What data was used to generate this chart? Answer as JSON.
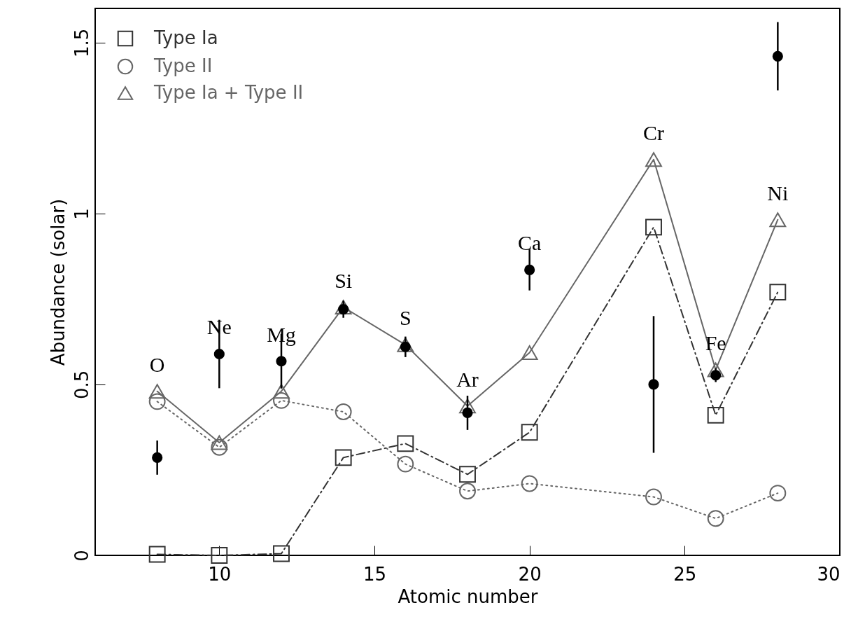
{
  "chart_data": {
    "type": "line",
    "xlabel": "Atomic number",
    "ylabel": "Abundance (solar)",
    "xlim": [
      6,
      30
    ],
    "xticks": [
      10,
      15,
      20,
      25,
      30
    ],
    "ylim": [
      0,
      1.6
    ],
    "yticks": [
      0,
      0.5,
      1,
      1.5
    ],
    "legend": "top left",
    "grid": false,
    "x": [
      8,
      10,
      12,
      14,
      16,
      18,
      20,
      24,
      26,
      28
    ],
    "series": [
      {
        "name": "Type Ia",
        "color": "#333333",
        "marker": "square",
        "line_style": "dashed",
        "values": [
          0.003,
          0,
          0.005,
          0.286,
          0.327,
          0.237,
          0.36,
          0.96,
          0.41,
          0.77
        ]
      },
      {
        "name": "Type II",
        "color": "#666666",
        "marker": "circle",
        "line_style": "dotted",
        "values": [
          0.45,
          0.316,
          0.453,
          0.42,
          0.267,
          0.188,
          0.21,
          0.171,
          0.108,
          0.182
        ]
      },
      {
        "name": "Type Ia + Type II",
        "color": "#666666",
        "marker": "triangle",
        "line_style": "solid",
        "values": [
          0.48,
          0.33,
          0.48,
          0.726,
          0.616,
          0.437,
          0.593,
          1.158,
          0.543,
          0.982
        ]
      },
      {
        "type": "scatter",
        "color": "#000000",
        "marker": "circle",
        "x": [
          12,
          14,
          16,
          18,
          20,
          26,
          28
        ],
        "values": [
          0.568,
          0.72,
          0.61,
          0.417,
          0.835,
          0.527,
          1.46
        ],
        "errors": [
          0.08,
          0.025,
          0.03,
          0.05,
          0.06,
          0.02,
          0.1
        ]
      },
      {
        "type": "scatter",
        "color": "#000000",
        "marker": "circle",
        "x": [
          8,
          10,
          24
        ],
        "values": [
          0.286,
          0.589,
          0.5
        ],
        "errors": [
          0.05,
          0.1,
          0.2
        ]
      }
    ],
    "annotations": [
      {
        "text": "O",
        "x": 8,
        "y": 0.48
      },
      {
        "text": "Ne",
        "x": 10,
        "y": 0.589
      },
      {
        "text": "Mg",
        "x": 12,
        "y": 0.568
      },
      {
        "text": "Si",
        "x": 14,
        "y": 0.726
      },
      {
        "text": "S",
        "x": 16,
        "y": 0.616
      },
      {
        "text": "Ar",
        "x": 18,
        "y": 0.437
      },
      {
        "text": "Ca",
        "x": 20,
        "y": 0.835
      },
      {
        "text": "Cr",
        "x": 24,
        "y": 1.158
      },
      {
        "text": "Fe",
        "x": 26,
        "y": 0.543
      },
      {
        "text": "Ni",
        "x": 28,
        "y": 0.982
      }
    ]
  }
}
